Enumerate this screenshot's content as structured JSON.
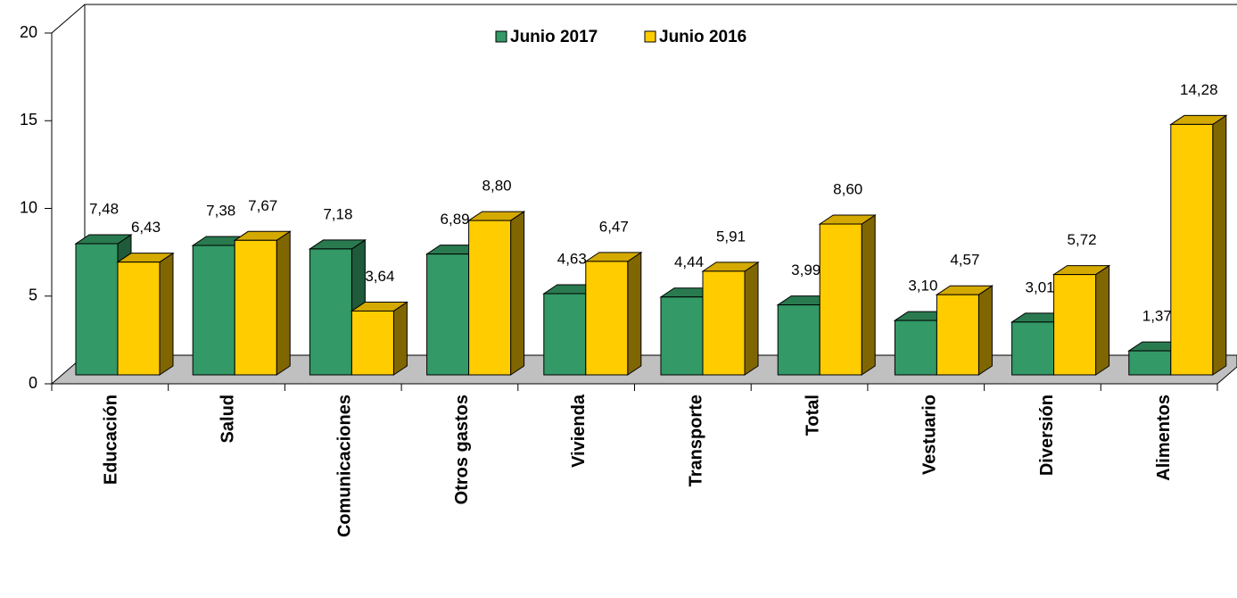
{
  "chart_data": {
    "type": "bar3d",
    "categories": [
      "Educación",
      "Salud",
      "Comunicaciones",
      "Otros gastos",
      "Vivienda",
      "Transporte",
      "Total",
      "Vestuario",
      "Diversión",
      "Alimentos"
    ],
    "series": [
      {
        "name": "Junio 2017",
        "color": "#339966",
        "top_color": "#2a7a50",
        "side_color": "#1f5a3a",
        "values": [
          7.48,
          7.38,
          7.18,
          6.89,
          4.63,
          4.44,
          3.99,
          3.1,
          3.01,
          1.37
        ],
        "value_labels": [
          "7,48",
          "7,38",
          "7,18",
          "6,89",
          "4,63",
          "4,44",
          "3,99",
          "3,10",
          "3,01",
          "1,37"
        ]
      },
      {
        "name": "Junio 2016",
        "color": "#ffcc00",
        "top_color": "#d4a900",
        "side_color": "#806600",
        "values": [
          6.43,
          7.67,
          3.64,
          8.8,
          6.47,
          5.91,
          8.6,
          4.57,
          5.72,
          14.28
        ],
        "value_labels": [
          "6,43",
          "7,67",
          "3,64",
          "8,80",
          "6,47",
          "5,91",
          "8,60",
          "4,57",
          "5,72",
          "14,28"
        ]
      }
    ],
    "ylim": [
      0,
      20
    ],
    "yticks": [
      0,
      5,
      10,
      15,
      20
    ],
    "grid": false,
    "legend": "top"
  }
}
